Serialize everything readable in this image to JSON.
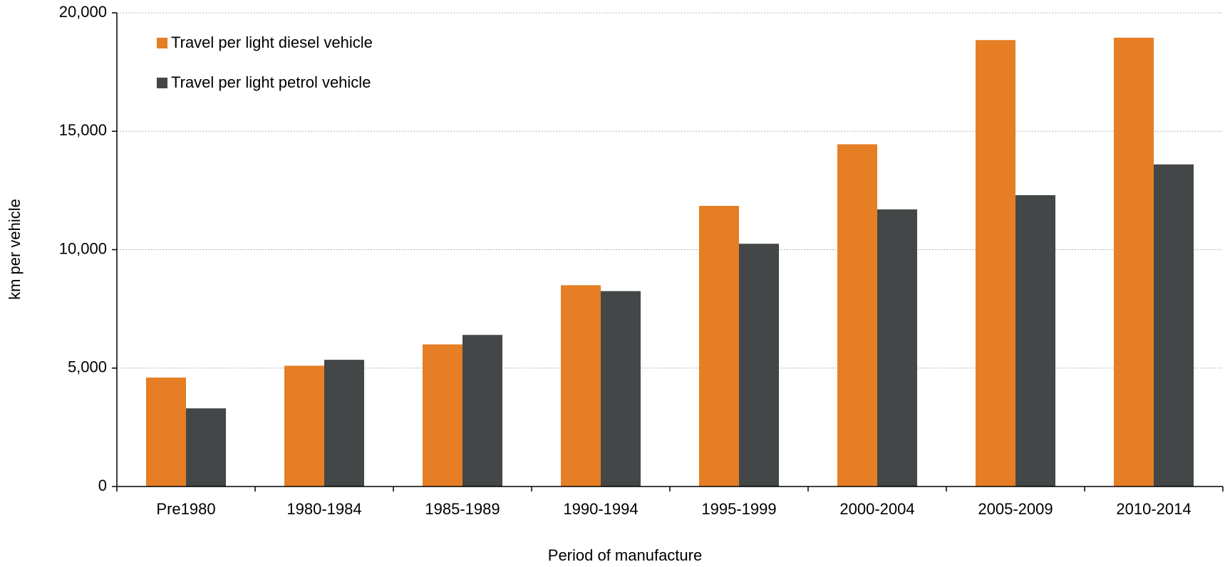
{
  "chart_data": {
    "type": "bar",
    "xlabel": "Period of manufacture",
    "ylabel": "km per vehicle",
    "categories": [
      "Pre1980",
      "1980-1984",
      "1985-1989",
      "1990-1994",
      "1995-1999",
      "2000-2004",
      "2005-2009",
      "2010-2014"
    ],
    "series": [
      {
        "name": "Travel per light diesel vehicle",
        "color": "#e57e25",
        "values": [
          4600,
          5100,
          6000,
          8500,
          11850,
          14450,
          18850,
          18950
        ]
      },
      {
        "name": "Travel per light petrol vehicle",
        "color": "#434747",
        "values": [
          3300,
          5350,
          6400,
          8250,
          10250,
          11700,
          12300,
          13600
        ]
      }
    ],
    "ylim": [
      0,
      20000
    ],
    "yticks": [
      0,
      {
        "value": 5000,
        "label": "5,000"
      },
      {
        "value": 10000,
        "label": "10,000"
      },
      {
        "value": 15000,
        "label": "15,000"
      },
      {
        "value": 20000,
        "label": "20,000"
      }
    ],
    "grid": true,
    "legend": "top-left"
  }
}
